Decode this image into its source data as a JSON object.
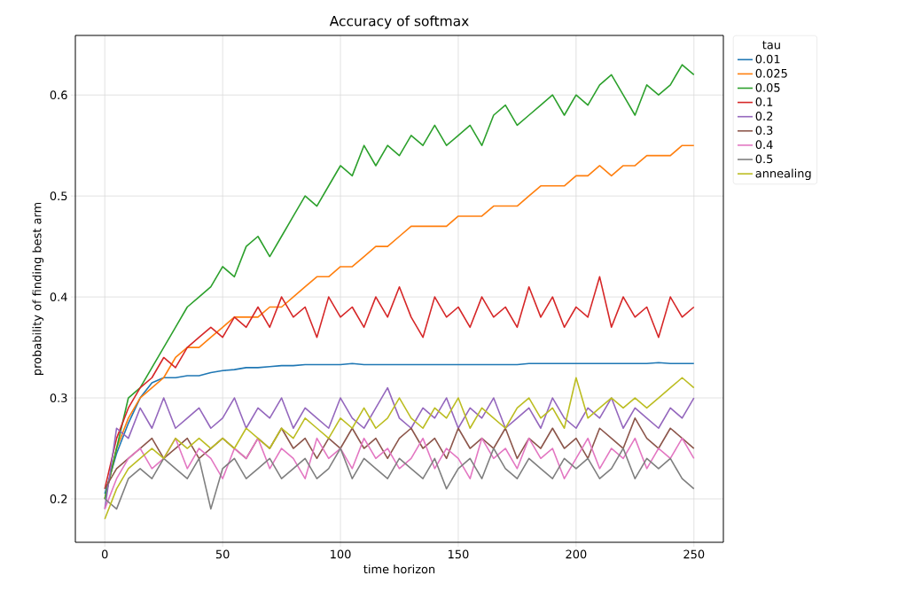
{
  "chart_data": {
    "type": "line",
    "title": "Accuracy of softmax",
    "xlabel": "time horizon",
    "ylabel": "probability of finding best arm",
    "legend_title": "tau",
    "legend": "right",
    "grid": true,
    "line_style": "solid",
    "marker": "none",
    "xlim": [
      -12.5,
      262.5
    ],
    "ylim": [
      0.157,
      0.659
    ],
    "xticks": [
      0,
      50,
      100,
      150,
      200,
      250
    ],
    "yticks": [
      0.2,
      0.3,
      0.4,
      0.5,
      0.6
    ],
    "x": [
      0,
      5,
      10,
      15,
      20,
      25,
      30,
      35,
      40,
      45,
      50,
      55,
      60,
      65,
      70,
      75,
      80,
      85,
      90,
      95,
      100,
      105,
      110,
      115,
      120,
      125,
      130,
      135,
      140,
      145,
      150,
      155,
      160,
      165,
      170,
      175,
      180,
      185,
      190,
      195,
      200,
      205,
      210,
      215,
      220,
      225,
      230,
      235,
      240,
      245,
      250
    ],
    "series": [
      {
        "name": "0.01",
        "color": "#1f77b4",
        "values": [
          0.205,
          0.245,
          0.275,
          0.3,
          0.315,
          0.32,
          0.32,
          0.322,
          0.322,
          0.325,
          0.327,
          0.328,
          0.33,
          0.33,
          0.331,
          0.332,
          0.332,
          0.333,
          0.333,
          0.333,
          0.333,
          0.334,
          0.333,
          0.333,
          0.333,
          0.333,
          0.333,
          0.333,
          0.333,
          0.333,
          0.333,
          0.333,
          0.333,
          0.333,
          0.333,
          0.333,
          0.334,
          0.334,
          0.334,
          0.334,
          0.334,
          0.334,
          0.334,
          0.334,
          0.334,
          0.334,
          0.334,
          0.335,
          0.334,
          0.334,
          0.334
        ]
      },
      {
        "name": "0.025",
        "color": "#ff7f0e",
        "values": [
          0.2,
          0.25,
          0.28,
          0.3,
          0.31,
          0.32,
          0.34,
          0.35,
          0.35,
          0.36,
          0.37,
          0.38,
          0.38,
          0.38,
          0.39,
          0.39,
          0.4,
          0.41,
          0.42,
          0.42,
          0.43,
          0.43,
          0.44,
          0.45,
          0.45,
          0.46,
          0.47,
          0.47,
          0.47,
          0.47,
          0.48,
          0.48,
          0.48,
          0.49,
          0.49,
          0.49,
          0.5,
          0.51,
          0.51,
          0.51,
          0.52,
          0.52,
          0.53,
          0.52,
          0.53,
          0.53,
          0.54,
          0.54,
          0.54,
          0.55,
          0.55
        ]
      },
      {
        "name": "0.05",
        "color": "#2ca02c",
        "values": [
          0.2,
          0.25,
          0.3,
          0.31,
          0.33,
          0.35,
          0.37,
          0.39,
          0.4,
          0.41,
          0.43,
          0.42,
          0.45,
          0.46,
          0.44,
          0.46,
          0.48,
          0.5,
          0.49,
          0.51,
          0.53,
          0.52,
          0.55,
          0.53,
          0.55,
          0.54,
          0.56,
          0.55,
          0.57,
          0.55,
          0.56,
          0.57,
          0.55,
          0.58,
          0.59,
          0.57,
          0.58,
          0.59,
          0.6,
          0.58,
          0.6,
          0.59,
          0.61,
          0.62,
          0.6,
          0.58,
          0.61,
          0.6,
          0.61,
          0.63,
          0.62
        ]
      },
      {
        "name": "0.1",
        "color": "#d62728",
        "values": [
          0.21,
          0.26,
          0.29,
          0.31,
          0.32,
          0.34,
          0.33,
          0.35,
          0.36,
          0.37,
          0.36,
          0.38,
          0.37,
          0.39,
          0.37,
          0.4,
          0.38,
          0.39,
          0.36,
          0.4,
          0.38,
          0.39,
          0.37,
          0.4,
          0.38,
          0.41,
          0.38,
          0.36,
          0.4,
          0.38,
          0.39,
          0.37,
          0.4,
          0.38,
          0.39,
          0.37,
          0.41,
          0.38,
          0.4,
          0.37,
          0.39,
          0.38,
          0.42,
          0.37,
          0.4,
          0.38,
          0.39,
          0.36,
          0.4,
          0.38,
          0.39
        ]
      },
      {
        "name": "0.2",
        "color": "#9467bd",
        "values": [
          0.19,
          0.27,
          0.26,
          0.29,
          0.27,
          0.3,
          0.27,
          0.28,
          0.29,
          0.27,
          0.28,
          0.3,
          0.27,
          0.29,
          0.28,
          0.3,
          0.27,
          0.29,
          0.28,
          0.27,
          0.3,
          0.28,
          0.27,
          0.29,
          0.31,
          0.28,
          0.27,
          0.29,
          0.28,
          0.3,
          0.27,
          0.29,
          0.28,
          0.3,
          0.27,
          0.28,
          0.29,
          0.27,
          0.3,
          0.28,
          0.27,
          0.29,
          0.28,
          0.3,
          0.27,
          0.29,
          0.28,
          0.27,
          0.29,
          0.28,
          0.3
        ]
      },
      {
        "name": "0.3",
        "color": "#8c564b",
        "values": [
          0.21,
          0.23,
          0.24,
          0.25,
          0.26,
          0.24,
          0.25,
          0.26,
          0.24,
          0.25,
          0.26,
          0.25,
          0.24,
          0.26,
          0.25,
          0.27,
          0.25,
          0.26,
          0.24,
          0.26,
          0.25,
          0.27,
          0.25,
          0.26,
          0.24,
          0.26,
          0.27,
          0.25,
          0.26,
          0.24,
          0.27,
          0.25,
          0.26,
          0.25,
          0.27,
          0.24,
          0.26,
          0.25,
          0.27,
          0.25,
          0.26,
          0.24,
          0.27,
          0.26,
          0.25,
          0.28,
          0.26,
          0.25,
          0.27,
          0.26,
          0.25
        ]
      },
      {
        "name": "0.4",
        "color": "#e377c2",
        "values": [
          0.19,
          0.22,
          0.24,
          0.25,
          0.23,
          0.24,
          0.26,
          0.23,
          0.25,
          0.24,
          0.22,
          0.25,
          0.24,
          0.26,
          0.23,
          0.25,
          0.24,
          0.22,
          0.26,
          0.24,
          0.25,
          0.23,
          0.26,
          0.24,
          0.25,
          0.23,
          0.24,
          0.26,
          0.23,
          0.25,
          0.24,
          0.22,
          0.26,
          0.24,
          0.25,
          0.23,
          0.26,
          0.24,
          0.25,
          0.22,
          0.24,
          0.26,
          0.23,
          0.25,
          0.24,
          0.26,
          0.23,
          0.25,
          0.24,
          0.26,
          0.24
        ]
      },
      {
        "name": "0.5",
        "color": "#7f7f7f",
        "values": [
          0.2,
          0.19,
          0.22,
          0.23,
          0.22,
          0.24,
          0.23,
          0.22,
          0.24,
          0.19,
          0.23,
          0.24,
          0.22,
          0.23,
          0.24,
          0.22,
          0.23,
          0.24,
          0.22,
          0.23,
          0.25,
          0.22,
          0.24,
          0.23,
          0.22,
          0.24,
          0.23,
          0.22,
          0.24,
          0.21,
          0.23,
          0.24,
          0.22,
          0.25,
          0.23,
          0.22,
          0.24,
          0.23,
          0.22,
          0.24,
          0.23,
          0.24,
          0.22,
          0.23,
          0.25,
          0.22,
          0.24,
          0.23,
          0.24,
          0.22,
          0.21
        ]
      },
      {
        "name": "annealing",
        "color": "#bcbd22",
        "values": [
          0.18,
          0.21,
          0.23,
          0.24,
          0.25,
          0.24,
          0.26,
          0.25,
          0.26,
          0.25,
          0.26,
          0.25,
          0.27,
          0.26,
          0.25,
          0.27,
          0.26,
          0.28,
          0.27,
          0.26,
          0.28,
          0.27,
          0.29,
          0.27,
          0.28,
          0.3,
          0.28,
          0.27,
          0.29,
          0.28,
          0.3,
          0.27,
          0.29,
          0.28,
          0.27,
          0.29,
          0.3,
          0.28,
          0.29,
          0.27,
          0.32,
          0.28,
          0.29,
          0.3,
          0.29,
          0.3,
          0.29,
          0.3,
          0.31,
          0.32,
          0.31
        ]
      }
    ]
  }
}
